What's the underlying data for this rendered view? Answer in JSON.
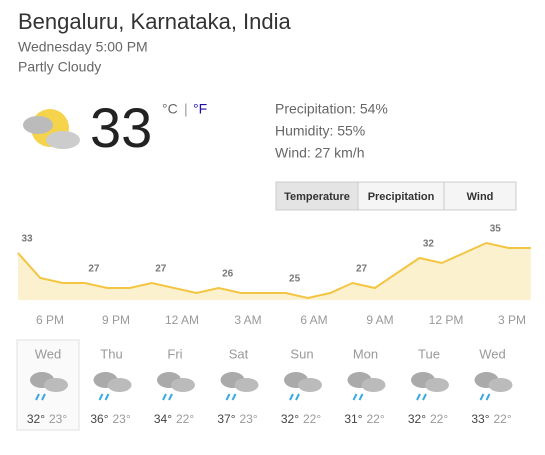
{
  "header": {
    "location": "Bengaluru, Karnataka, India",
    "datetime": "Wednesday 5:00 PM",
    "condition": "Partly Cloudy"
  },
  "current": {
    "temperature": 33,
    "unit_c": "°C",
    "separator": "|",
    "unit_f": "°F"
  },
  "details": [
    "Precipitation: 54%",
    "Humidity: 55%",
    "Wind: 27 km/h"
  ],
  "tabs": [
    "Temperature",
    "Precipitation",
    "Wind"
  ],
  "hourly": {
    "temps": [
      33,
      28,
      27,
      27,
      26,
      26,
      27,
      26,
      25,
      26,
      25,
      25,
      25,
      24,
      25,
      27,
      26,
      29,
      32,
      31,
      33,
      35,
      34,
      34
    ],
    "times": [
      "6 PM",
      "9 PM",
      "12 AM",
      "3 AM",
      "6 AM",
      "9 AM",
      "12 PM",
      "3 PM"
    ]
  },
  "days": [
    {
      "name": "Wed",
      "high": "32°",
      "low": "23°"
    },
    {
      "name": "Thu",
      "high": "36°",
      "low": "23°"
    },
    {
      "name": "Fri",
      "high": "34°",
      "low": "22°"
    },
    {
      "name": "Sat",
      "high": "37°",
      "low": "23°"
    },
    {
      "name": "Sun",
      "high": "32°",
      "low": "22°"
    },
    {
      "name": "Mon",
      "high": "31°",
      "low": "22°"
    },
    {
      "name": "Tue",
      "high": "32°",
      "low": "22°"
    },
    {
      "name": "Wed",
      "high": "33°",
      "low": "22°"
    }
  ]
}
